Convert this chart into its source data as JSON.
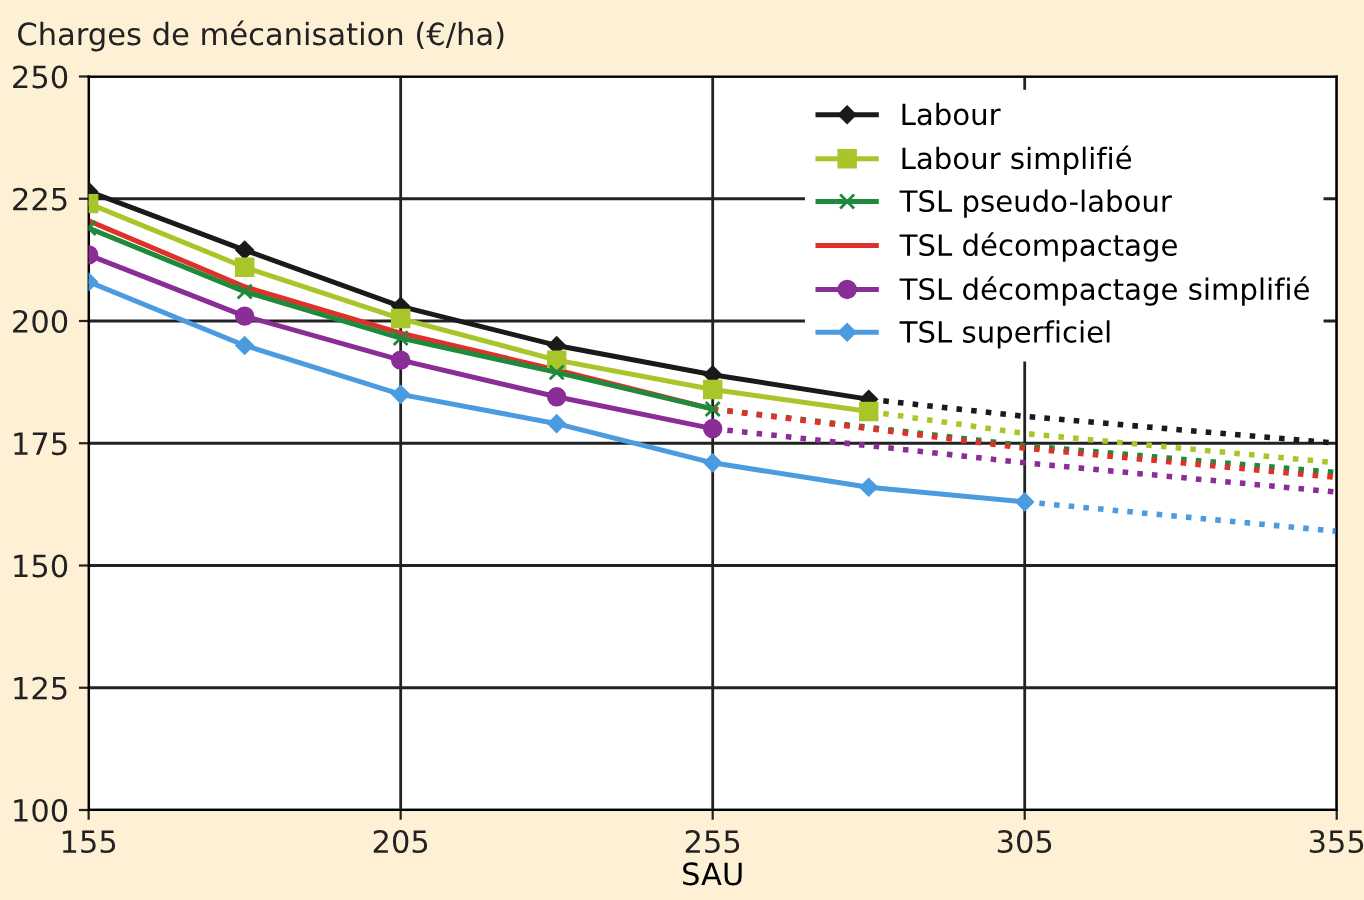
{
  "chart_data": {
    "type": "line",
    "ylabel": "Charges de mécanisation (€/ha)",
    "xlabel": "SAU",
    "xlim": [
      155,
      355
    ],
    "xticks": [
      155,
      205,
      255,
      305,
      355
    ],
    "ylim": [
      100,
      250
    ],
    "yticks": [
      100,
      125,
      150,
      175,
      200,
      225,
      250
    ],
    "grid": true,
    "legend": "top right",
    "series": [
      {
        "name": "Labour",
        "color": "#1a1a1a",
        "marker": "diamond",
        "line_style": "solid",
        "x": [
          155,
          180,
          205,
          230,
          255,
          280
        ],
        "values": [
          226.5,
          214.5,
          203,
          195,
          189,
          184
        ]
      },
      {
        "name": "Labour simplifié",
        "color": "#a8c62a",
        "marker": "square",
        "line_style": "solid",
        "x": [
          155,
          180,
          205,
          230,
          255,
          280
        ],
        "values": [
          224,
          211,
          200.5,
          192,
          186,
          181.5
        ]
      },
      {
        "name": "TSL pseudo-labour",
        "color": "#1f8a3c",
        "marker": "cross",
        "line_style": "solid",
        "x": [
          155,
          180,
          205,
          230,
          255
        ],
        "values": [
          219,
          206,
          196.5,
          189.5,
          182
        ]
      },
      {
        "name": "TSL décompactage",
        "color": "#e0302a",
        "marker": "none",
        "line_style": "solid",
        "x": [
          155,
          180,
          205,
          230,
          255
        ],
        "values": [
          220.5,
          207,
          197.5,
          190,
          182
        ]
      },
      {
        "name": "TSL décompactage simplifié",
        "color": "#8a2d96",
        "marker": "circle",
        "line_style": "solid",
        "x": [
          155,
          180,
          205,
          230,
          255
        ],
        "values": [
          213.5,
          201,
          192,
          184.5,
          178
        ]
      },
      {
        "name": "TSL superficiel",
        "color": "#4a9be0",
        "marker": "diamond",
        "line_style": "solid",
        "x": [
          155,
          180,
          205,
          230,
          255,
          280,
          305
        ],
        "values": [
          208,
          195,
          185,
          179,
          171,
          166,
          163
        ]
      },
      {
        "color": "#1a1a1a",
        "marker": "none",
        "line_style": "dotted",
        "x": [
          280,
          305,
          355
        ],
        "values": [
          184,
          180.5,
          175
        ]
      },
      {
        "color": "#a8c62a",
        "marker": "none",
        "line_style": "dotted",
        "x": [
          280,
          305,
          355
        ],
        "values": [
          181.5,
          177,
          171
        ]
      },
      {
        "color": "#1f8a3c",
        "marker": "none",
        "line_style": "dotted",
        "x": [
          255,
          305,
          355
        ],
        "values": [
          182,
          174.5,
          169
        ]
      },
      {
        "color": "#e0302a",
        "marker": "none",
        "line_style": "dotted",
        "x": [
          255,
          305,
          355
        ],
        "values": [
          182,
          174,
          168
        ]
      },
      {
        "color": "#8a2d96",
        "marker": "none",
        "line_style": "dotted",
        "x": [
          255,
          305,
          355
        ],
        "values": [
          178,
          171,
          165
        ]
      },
      {
        "color": "#4a9be0",
        "marker": "none",
        "line_style": "dotted",
        "x": [
          305,
          355
        ],
        "values": [
          163,
          157
        ]
      }
    ]
  }
}
